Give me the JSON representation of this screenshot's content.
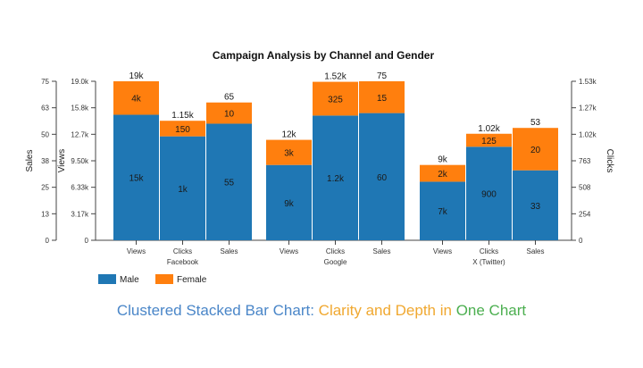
{
  "chart_data": {
    "type": "bar",
    "title": "Campaign Analysis by Channel and Gender",
    "groups": [
      "Facebook",
      "Google",
      "X (Twitter)"
    ],
    "metrics": [
      "Views",
      "Clicks",
      "Sales"
    ],
    "axes": {
      "sales": {
        "label": "Sales",
        "ylim": [
          0,
          75
        ],
        "ticks": [
          "0",
          "13",
          "25",
          "38",
          "50",
          "63",
          "75"
        ]
      },
      "views": {
        "label": "Views",
        "ylim": [
          0,
          19000
        ],
        "ticks": [
          "0",
          "3.17k",
          "6.33k",
          "9.50k",
          "12.7k",
          "15.8k",
          "19.0k"
        ]
      },
      "clicks": {
        "label": "Clicks",
        "ylim": [
          0,
          1530
        ],
        "ticks": [
          "0",
          "254",
          "508",
          "763",
          "1.02k",
          "1.27k",
          "1.53k"
        ]
      }
    },
    "series": [
      {
        "name": "Male",
        "color": "#1f77b4"
      },
      {
        "name": "Female",
        "color": "#ff7f0e"
      }
    ],
    "bars": [
      {
        "group": "Facebook",
        "metric": "Views",
        "axis": "views",
        "male": 15000,
        "female": 4000,
        "male_label": "15k",
        "female_label": "4k",
        "total_label": "19k"
      },
      {
        "group": "Facebook",
        "metric": "Clicks",
        "axis": "clicks",
        "male": 1000,
        "female": 150,
        "male_label": "1k",
        "female_label": "150",
        "total_label": "1.15k"
      },
      {
        "group": "Facebook",
        "metric": "Sales",
        "axis": "sales",
        "male": 55,
        "female": 10,
        "male_label": "55",
        "female_label": "10",
        "total_label": "65"
      },
      {
        "group": "Google",
        "metric": "Views",
        "axis": "views",
        "male": 9000,
        "female": 3000,
        "male_label": "9k",
        "female_label": "3k",
        "total_label": "12k"
      },
      {
        "group": "Google",
        "metric": "Clicks",
        "axis": "clicks",
        "male": 1200,
        "female": 325,
        "male_label": "1.2k",
        "female_label": "325",
        "total_label": "1.52k"
      },
      {
        "group": "Google",
        "metric": "Sales",
        "axis": "sales",
        "male": 60,
        "female": 15,
        "male_label": "60",
        "female_label": "15",
        "total_label": "75"
      },
      {
        "group": "X (Twitter)",
        "metric": "Views",
        "axis": "views",
        "male": 7000,
        "female": 2000,
        "male_label": "7k",
        "female_label": "2k",
        "total_label": "9k"
      },
      {
        "group": "X (Twitter)",
        "metric": "Clicks",
        "axis": "clicks",
        "male": 900,
        "female": 125,
        "male_label": "900",
        "female_label": "125",
        "total_label": "1.02k"
      },
      {
        "group": "X (Twitter)",
        "metric": "Sales",
        "axis": "sales",
        "male": 33,
        "female": 20,
        "male_label": "33",
        "female_label": "20",
        "total_label": "53"
      }
    ],
    "legend_position": "bottom-left",
    "grid": false
  },
  "caption": {
    "part1": "Clustered Stacked Bar Chart: ",
    "part2": "Clarity and Depth in ",
    "part3": "One Chart",
    "color1": "#4a86c8",
    "color2": "#f0a830",
    "color3": "#4caf50"
  }
}
